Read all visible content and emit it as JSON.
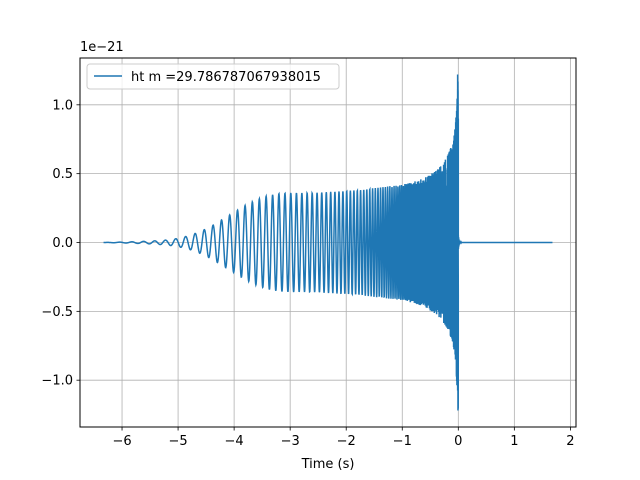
{
  "chart_data": {
    "type": "line",
    "title": "",
    "xlabel": "Time (s)",
    "ylabel": "",
    "y_offset_text": "1e−21",
    "xlim": [
      -6.75,
      2.1
    ],
    "ylim": [
      -1.34,
      1.34
    ],
    "x_ticks": [
      -6,
      -5,
      -4,
      -3,
      -2,
      -1,
      0,
      1,
      2
    ],
    "x_tick_labels": [
      "−6",
      "−5",
      "−4",
      "−3",
      "−2",
      "−1",
      "0",
      "1",
      "2"
    ],
    "y_ticks": [
      -1.0,
      -0.5,
      0.0,
      0.5,
      1.0
    ],
    "y_tick_labels": [
      "−1.0",
      "−0.5",
      "0.0",
      "0.5",
      "1.0"
    ],
    "grid": true,
    "legend_position": "top-left",
    "series": [
      {
        "name": "ht m =29.786787067938015",
        "color": "#1f77b4",
        "x_start": -6.33,
        "merger_time": 0.0,
        "x_end": 1.68,
        "envelope": {
          "x": [
            -6.33,
            -5.9,
            -5.5,
            -5.2,
            -5.0,
            -4.8,
            -4.6,
            -4.4,
            -4.2,
            -4.0,
            -3.8,
            -3.6,
            -3.4,
            -3.2,
            -3.0,
            -2.8,
            -2.6,
            -2.4,
            -2.2,
            -2.0,
            -1.8,
            -1.6,
            -1.4,
            -1.2,
            -1.0,
            -0.8,
            -0.6,
            -0.4,
            -0.3,
            -0.2,
            -0.1,
            -0.05,
            0.0
          ],
          "amplitude": [
            0.0,
            0.004,
            0.01,
            0.018,
            0.03,
            0.05,
            0.08,
            0.12,
            0.17,
            0.22,
            0.27,
            0.31,
            0.34,
            0.355,
            0.36,
            0.36,
            0.36,
            0.365,
            0.37,
            0.375,
            0.38,
            0.39,
            0.4,
            0.41,
            0.42,
            0.44,
            0.47,
            0.52,
            0.56,
            0.62,
            0.72,
            0.85,
            1.22
          ]
        },
        "ringdown_amplitude": 0.06
      }
    ]
  }
}
